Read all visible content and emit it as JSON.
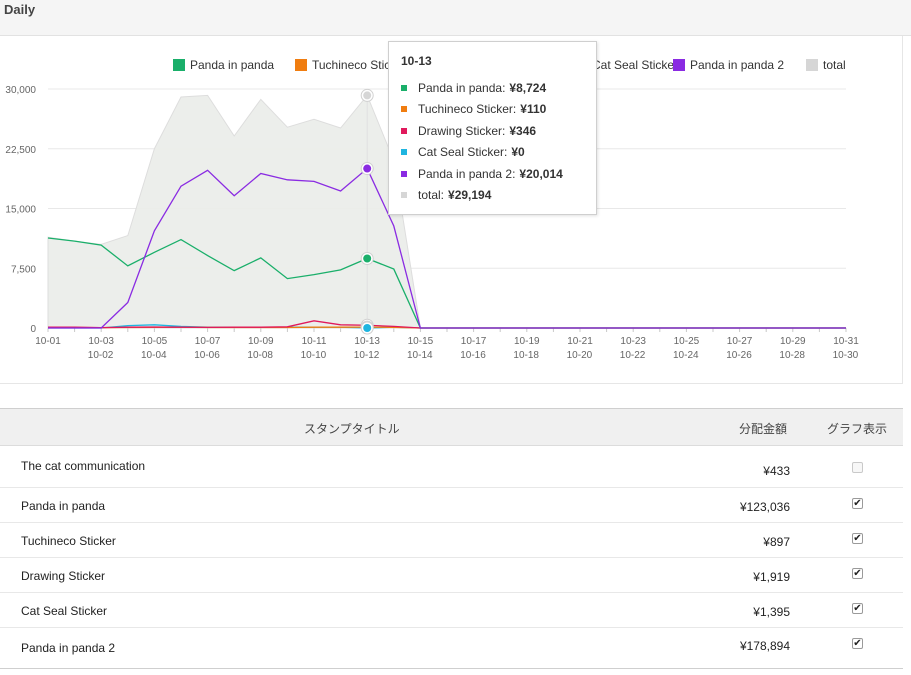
{
  "header": {
    "title": "Daily"
  },
  "chart_data": {
    "type": "line",
    "x": [
      "10-01",
      "10-02",
      "10-03",
      "10-04",
      "10-05",
      "10-06",
      "10-07",
      "10-08",
      "10-09",
      "10-10",
      "10-11",
      "10-12",
      "10-13",
      "10-14",
      "10-15",
      "10-16",
      "10-17",
      "10-18",
      "10-19",
      "10-20",
      "10-21",
      "10-22",
      "10-23",
      "10-24",
      "10-25",
      "10-26",
      "10-27",
      "10-28",
      "10-29",
      "10-30",
      "10-31"
    ],
    "ylim": [
      0,
      30000
    ],
    "yticks": [
      "0",
      "7,500",
      "15,000",
      "22,500",
      "30,000"
    ],
    "grid": true,
    "legend_position": "top",
    "series": [
      {
        "name": "Panda in panda",
        "color": "#1aaf6a",
        "values": [
          11300,
          10900,
          10400,
          7800,
          9500,
          11100,
          9100,
          7200,
          8800,
          6200,
          6700,
          7300,
          8724,
          7400,
          0,
          0,
          0,
          0,
          0,
          0,
          0,
          0,
          0,
          0,
          0,
          0,
          0,
          0,
          0,
          0,
          0
        ]
      },
      {
        "name": "Tuchineco Sticker",
        "color": "#f07d10",
        "values": [
          60,
          60,
          50,
          60,
          80,
          90,
          70,
          60,
          60,
          60,
          100,
          100,
          110,
          80,
          0,
          0,
          0,
          0,
          0,
          0,
          0,
          0,
          0,
          0,
          0,
          0,
          0,
          0,
          0,
          0,
          0
        ]
      },
      {
        "name": "Drawing Sticker",
        "color": "#e0195c",
        "values": [
          100,
          100,
          50,
          100,
          120,
          100,
          80,
          100,
          100,
          150,
          900,
          400,
          346,
          200,
          0,
          0,
          0,
          0,
          0,
          0,
          0,
          0,
          0,
          0,
          0,
          0,
          0,
          0,
          0,
          0,
          0
        ]
      },
      {
        "name": "Cat Seal Sticker",
        "color": "#1fb5e0",
        "values": [
          0,
          0,
          0,
          300,
          400,
          200,
          100,
          100,
          100,
          100,
          100,
          100,
          0,
          100,
          0,
          0,
          0,
          0,
          0,
          0,
          0,
          0,
          0,
          0,
          0,
          0,
          0,
          0,
          0,
          0,
          0
        ]
      },
      {
        "name": "Panda in panda 2",
        "color": "#8a2be2",
        "values": [
          0,
          0,
          0,
          3200,
          12200,
          17800,
          19800,
          16600,
          19400,
          18600,
          18400,
          17200,
          20014,
          12800,
          0,
          0,
          0,
          0,
          0,
          0,
          0,
          0,
          0,
          0,
          0,
          0,
          0,
          0,
          0,
          0,
          0
        ]
      },
      {
        "name": "total",
        "color": "#d6d6d6",
        "values": [
          11400,
          10900,
          10500,
          11600,
          22500,
          29000,
          29200,
          24100,
          28700,
          25200,
          26200,
          25100,
          29194,
          21000,
          0,
          0,
          0,
          0,
          0,
          0,
          0,
          0,
          0,
          0,
          0,
          0,
          0,
          0,
          0,
          0,
          0
        ]
      }
    ]
  },
  "tooltip": {
    "date": "10-13",
    "rows": [
      {
        "label": "Panda in panda:",
        "value": "¥8,724",
        "color": "#1aaf6a"
      },
      {
        "label": "Tuchineco Sticker:",
        "value": "¥110",
        "color": "#f07d10"
      },
      {
        "label": "Drawing Sticker:",
        "value": "¥346",
        "color": "#e0195c"
      },
      {
        "label": "Cat Seal Sticker:",
        "value": "¥0",
        "color": "#1fb5e0"
      },
      {
        "label": "Panda in panda 2:",
        "value": "¥20,014",
        "color": "#8a2be2"
      },
      {
        "label": "total:",
        "value": "¥29,194",
        "color": "#d6d6d6"
      }
    ]
  },
  "table": {
    "headers": {
      "title": "スタンプタイトル",
      "amount": "分配金額",
      "graph": "グラフ表示"
    },
    "rows": [
      {
        "title": "The cat communication",
        "amount": "¥433",
        "checked": false
      },
      {
        "title": "Panda in panda",
        "amount": "¥123,036",
        "checked": true
      },
      {
        "title": "Tuchineco Sticker",
        "amount": "¥897",
        "checked": true
      },
      {
        "title": "Drawing Sticker",
        "amount": "¥1,919",
        "checked": true
      },
      {
        "title": "Cat Seal Sticker",
        "amount": "¥1,395",
        "checked": true
      },
      {
        "title": "Panda in panda 2",
        "amount": "¥178,894",
        "checked": true
      }
    ]
  }
}
